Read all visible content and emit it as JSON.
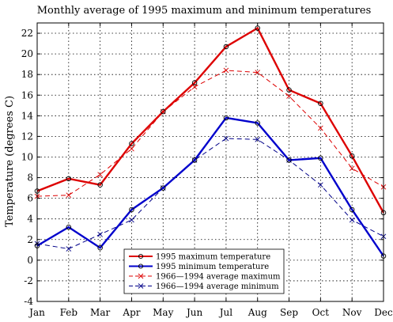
{
  "chart_data": {
    "type": "line",
    "title": "Monthly average of 1995 maximum and minimum temperatures",
    "ylabel": "Temperature (degrees C)",
    "xlabel": "",
    "ylim": [
      -4,
      23
    ],
    "yticks": [
      -4,
      -2,
      0,
      2,
      4,
      6,
      8,
      10,
      12,
      14,
      16,
      18,
      20,
      22
    ],
    "categories": [
      "Jan",
      "Feb",
      "Mar",
      "Apr",
      "May",
      "Jun",
      "Jul",
      "Aug",
      "Sep",
      "Oct",
      "Nov",
      "Dec"
    ],
    "grid": true,
    "legend_position": "bottom-center",
    "series": [
      {
        "name": "1995 maximum temperature",
        "color": "#dd0000",
        "style": "solid",
        "marker": "circle",
        "values": [
          6.7,
          7.9,
          7.3,
          11.3,
          14.4,
          17.2,
          20.7,
          22.5,
          16.5,
          15.2,
          10.1,
          4.6
        ]
      },
      {
        "name": "1995 minimum temperature",
        "color": "#0000cc",
        "style": "solid",
        "marker": "circle",
        "values": [
          1.4,
          3.2,
          1.2,
          4.9,
          7.0,
          9.7,
          13.8,
          13.3,
          9.7,
          9.9,
          4.9,
          0.4
        ]
      },
      {
        "name": "1966—1994 average maximum",
        "color": "#dd0000",
        "style": "dashed",
        "marker": "x",
        "values": [
          6.2,
          6.3,
          8.3,
          10.8,
          14.4,
          16.8,
          18.4,
          18.2,
          15.9,
          12.8,
          8.9,
          7.1
        ]
      },
      {
        "name": "1966—1994 average minimum",
        "color": "#000088",
        "style": "dashed",
        "marker": "x",
        "values": [
          1.6,
          1.1,
          2.5,
          3.9,
          7.0,
          9.7,
          11.8,
          11.7,
          9.7,
          7.3,
          3.9,
          2.3
        ]
      }
    ]
  }
}
